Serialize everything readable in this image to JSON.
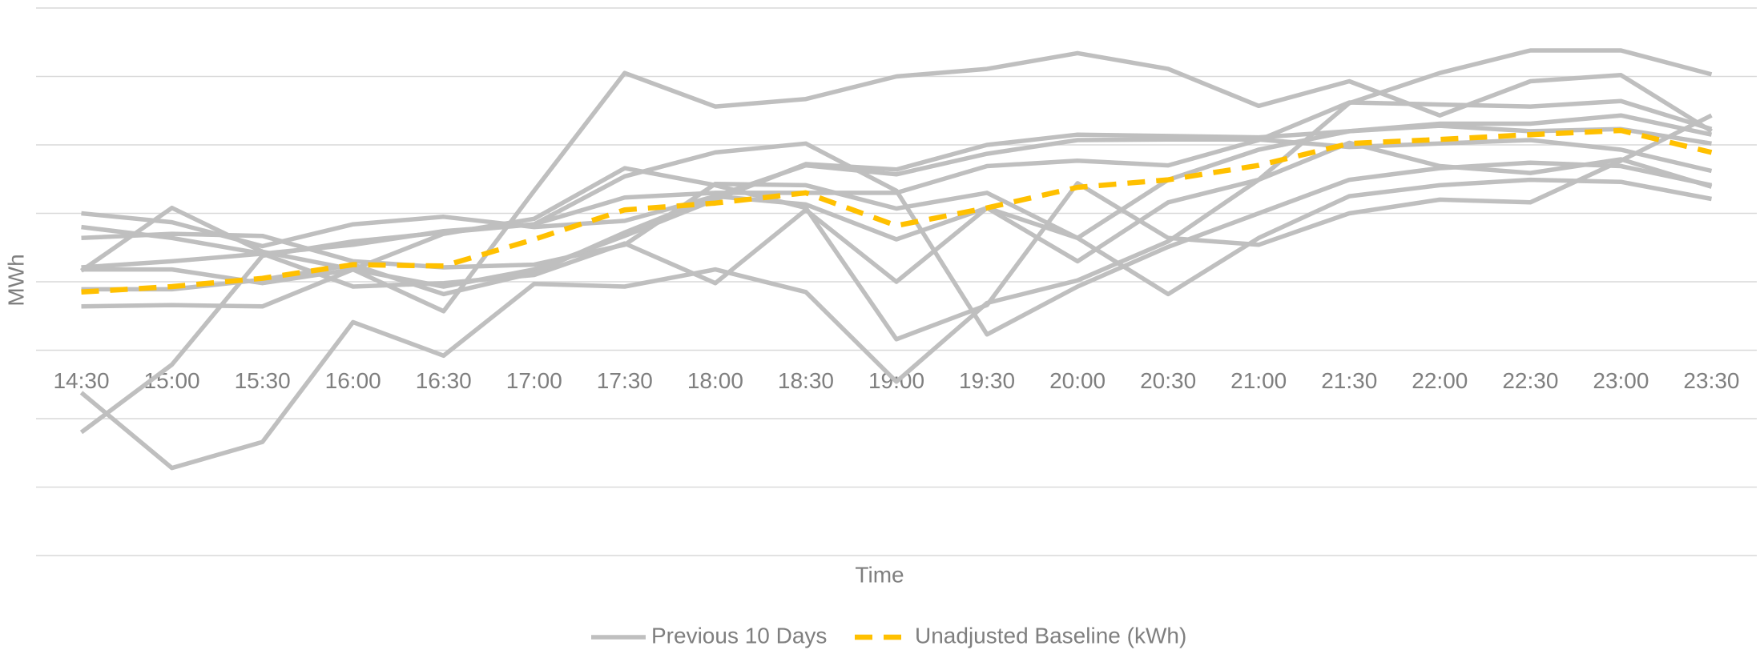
{
  "chart_data": {
    "type": "line",
    "x_label": "Time",
    "y_label": "MWh",
    "categories": [
      "14:30",
      "15:00",
      "15:30",
      "16:00",
      "16:30",
      "17:00",
      "17:30",
      "18:00",
      "18:30",
      "19:00",
      "19:30",
      "20:00",
      "20:30",
      "21:00",
      "21:30",
      "22:00",
      "22:30",
      "23:00",
      "23:30"
    ],
    "ylim": [
      0,
      8
    ],
    "yticks": [
      0,
      1,
      2,
      3,
      4,
      5,
      6,
      7,
      8
    ],
    "x_axis_crosses": 3,
    "grid": true,
    "series": [
      {
        "name": "Previous 10 Days",
        "color": "#bfbfbf",
        "dashed": false,
        "days": [
          [
            4.16,
            5.08,
            4.44,
            4.18,
            3.57,
            5.33,
            7.05,
            6.56,
            6.67,
            7.0,
            7.11,
            7.34,
            7.11,
            6.57,
            6.93,
            6.43,
            6.93,
            7.02,
            6.2
          ],
          [
            1.8,
            2.79,
            4.38,
            4.59,
            4.72,
            4.84,
            5.54,
            5.89,
            6.02,
            5.33,
            3.23,
            3.93,
            4.51,
            5.0,
            5.49,
            5.66,
            5.74,
            5.69,
            5.41
          ],
          [
            2.38,
            1.28,
            1.66,
            3.41,
            2.92,
            3.97,
            3.93,
            4.18,
            3.85,
            2.54,
            3.69,
            4.02,
            4.59,
            5.49,
            6.61,
            7.05,
            7.38,
            7.38,
            7.03
          ],
          [
            4.8,
            4.64,
            4.41,
            3.93,
            3.98,
            4.1,
            4.56,
            3.98,
            5.05,
            4.0,
            5.08,
            4.3,
            5.16,
            5.49,
            6.03,
            5.69,
            5.59,
            5.79,
            5.39
          ],
          [
            4.64,
            4.7,
            4.67,
            4.3,
            4.21,
            4.25,
            4.54,
            5.43,
            5.41,
            5.07,
            5.3,
            4.64,
            3.82,
            4.64,
            5.25,
            5.41,
            5.49,
            5.46,
            5.21
          ],
          [
            4.21,
            4.3,
            4.41,
            4.54,
            4.74,
            4.84,
            5.23,
            5.3,
            5.3,
            5.3,
            5.69,
            5.77,
            5.7,
            6.07,
            6.62,
            6.59,
            6.56,
            6.64,
            6.23
          ],
          [
            3.64,
            3.66,
            3.64,
            4.18,
            3.93,
            4.18,
            4.67,
            5.2,
            5.72,
            5.64,
            6.0,
            6.15,
            6.13,
            6.11,
            6.2,
            6.28,
            6.2,
            6.23,
            6.02
          ],
          [
            4.18,
            4.18,
            3.98,
            4.18,
            4.7,
            4.92,
            5.66,
            5.41,
            5.08,
            3.16,
            3.66,
            5.44,
            4.64,
            4.54,
            5.0,
            5.2,
            5.16,
            5.77,
            6.43
          ],
          [
            3.89,
            3.89,
            4.03,
            4.25,
            3.82,
            4.13,
            4.72,
            5.25,
            5.7,
            5.57,
            5.87,
            6.07,
            6.08,
            6.08,
            5.97,
            6.02,
            6.07,
            5.93,
            5.62
          ],
          [
            5.0,
            4.87,
            4.52,
            4.84,
            4.95,
            4.8,
            4.89,
            5.25,
            5.13,
            4.62,
            5.08,
            4.64,
            5.49,
            5.93,
            6.2,
            6.31,
            6.31,
            6.43,
            6.15
          ]
        ]
      },
      {
        "name": "Unadjusted Baseline (kWh)",
        "color": "#ffc000",
        "dashed": true,
        "values": [
          3.85,
          3.93,
          4.05,
          4.25,
          4.23,
          4.62,
          5.05,
          5.15,
          5.3,
          4.82,
          5.08,
          5.38,
          5.49,
          5.7,
          6.02,
          6.08,
          6.15,
          6.21,
          5.89
        ]
      }
    ]
  }
}
